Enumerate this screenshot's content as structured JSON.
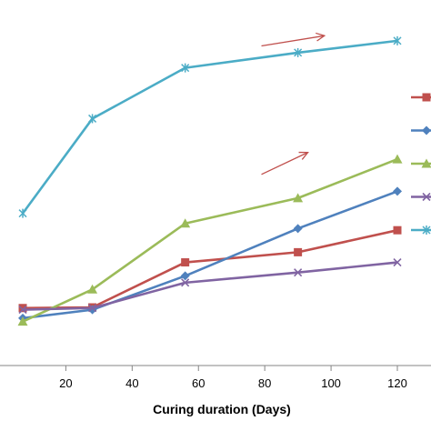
{
  "chart_data": {
    "type": "line",
    "xlabel": "Curing  duration (Days)",
    "xlim": [
      0,
      120
    ],
    "ylim": [
      0,
      100
    ],
    "x_ticks": [
      20,
      40,
      60,
      80,
      100,
      120
    ],
    "grid": false,
    "legend_position": "right",
    "series": [
      {
        "color": "#c0504d",
        "marker": "square",
        "x": [
          7,
          28,
          56,
          90,
          120
        ],
        "y": [
          17,
          17.2,
          30.5,
          33.5,
          40
        ]
      },
      {
        "color": "#4f81bd",
        "marker": "diamond",
        "x": [
          7,
          28,
          56,
          90,
          120
        ],
        "y": [
          14,
          16.5,
          26.5,
          40.5,
          51.5
        ]
      },
      {
        "color": "#9bbb59",
        "marker": "triangle",
        "x": [
          7,
          28,
          56,
          90,
          120
        ],
        "y": [
          13,
          22.5,
          42,
          49.5,
          61
        ]
      },
      {
        "color": "#8064a2",
        "marker": "x",
        "x": [
          7,
          28,
          56,
          90,
          120
        ],
        "y": [
          16.5,
          17,
          24.5,
          27.5,
          30.5
        ]
      },
      {
        "color": "#4bacc6",
        "marker": "star",
        "x": [
          7,
          28,
          56,
          90,
          120
        ],
        "y": [
          45,
          73,
          88,
          92.5,
          96
        ]
      }
    ],
    "annotations": [
      {
        "type": "arrow",
        "color": "#c0504d",
        "from": [
          79,
          94.5
        ],
        "to": [
          98,
          97.5
        ]
      },
      {
        "type": "arrow",
        "color": "#c0504d",
        "from": [
          79,
          56.5
        ],
        "to": [
          93,
          63
        ]
      }
    ]
  }
}
